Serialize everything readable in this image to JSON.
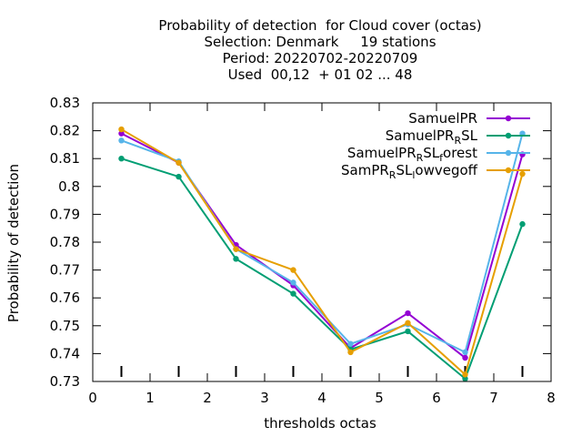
{
  "chart_data": {
    "type": "line",
    "title_lines": [
      "Probability of detection  for Cloud cover (octas)",
      "Selection: Denmark     19 stations",
      "Period: 20220702-20220709",
      "Used  00,12  + 01 02 ... 48"
    ],
    "xlabel": "thresholds octas",
    "ylabel": "Probability of detection",
    "xlim": [
      0,
      8
    ],
    "ylim": [
      0.73,
      0.83
    ],
    "xticks": [
      0,
      1,
      2,
      3,
      4,
      5,
      6,
      7,
      8
    ],
    "xtick_labels": [
      "0",
      "1",
      "2",
      "3",
      "4",
      "5",
      "6",
      "7",
      "8"
    ],
    "yticks": [
      0.73,
      0.74,
      0.75,
      0.76,
      0.77,
      0.78,
      0.79,
      0.8,
      0.81,
      0.82,
      0.83
    ],
    "ytick_labels": [
      "0.73",
      "0.74",
      "0.75",
      "0.76",
      "0.77",
      "0.78",
      "0.79",
      "0.8",
      "0.81",
      "0.82",
      "0.83"
    ],
    "grid": false,
    "legend_position": "top-right",
    "x": [
      0.5,
      1.5,
      2.5,
      3.5,
      4.5,
      5.5,
      6.5,
      7.5
    ],
    "series": [
      {
        "name_main": "SamuelPR",
        "name_sub": "",
        "name_tail": "",
        "name_sub2": "",
        "name_tail2": "",
        "color": "#9400d3",
        "values": [
          0.819,
          0.8085,
          0.779,
          0.7645,
          0.742,
          0.7545,
          0.7385,
          0.8115
        ]
      },
      {
        "name_main": "SamuelPR",
        "name_sub": "R",
        "name_tail": "SL",
        "name_sub2": "",
        "name_tail2": "",
        "color": "#009e73",
        "values": [
          0.81,
          0.8035,
          0.774,
          0.7615,
          0.7415,
          0.748,
          0.731,
          0.7865
        ]
      },
      {
        "name_main": "SamuelPR",
        "name_sub": "R",
        "name_tail": "SL",
        "name_sub2": "f",
        "name_tail2": "orest",
        "color": "#56b4e9",
        "values": [
          0.8165,
          0.809,
          0.7775,
          0.7655,
          0.7435,
          0.7505,
          0.7405,
          0.819
        ]
      },
      {
        "name_main": "SamPR",
        "name_sub": "R",
        "name_tail": "SL",
        "name_sub2": "l",
        "name_tail2": "owvegoff",
        "color": "#e69f00",
        "values": [
          0.8205,
          0.8085,
          0.7775,
          0.77,
          0.7405,
          0.751,
          0.7325,
          0.8045
        ]
      }
    ]
  }
}
